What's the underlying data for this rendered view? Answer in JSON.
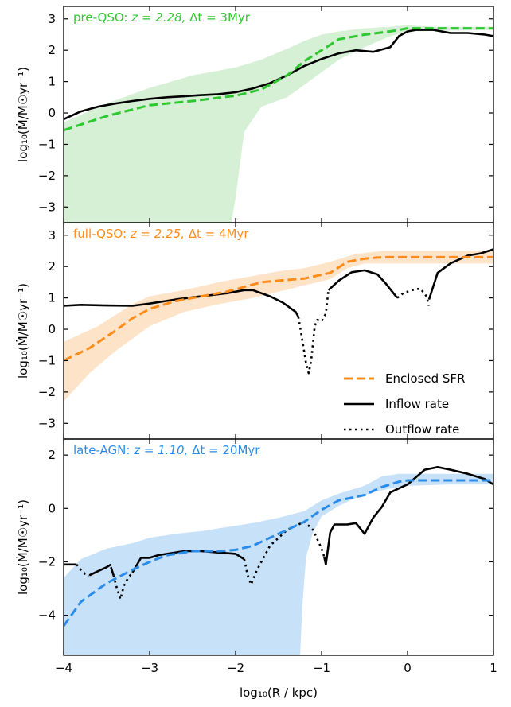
{
  "chart_data": {
    "type": "line",
    "xlabel": "log₁₀(R / kpc)",
    "xlim": [
      -4,
      1
    ],
    "xticks": [
      "−4",
      "−3",
      "−2",
      "−1",
      "0",
      "1"
    ],
    "legend": {
      "placement": "lower-right of middle panel",
      "entries": [
        {
          "label": "Enclosed SFR",
          "style": "dashed",
          "color": "#ff8c1a"
        },
        {
          "label": "Inflow rate",
          "style": "solid",
          "color": "#000000"
        },
        {
          "label": "Outflow rate",
          "style": "dotted",
          "color": "#000000"
        }
      ]
    },
    "panels": [
      {
        "title_prefix": "pre-QSO:",
        "title_z": "z = 2.28,",
        "title_dt": "Δt = 3Myr",
        "color": "#2fc72f",
        "fill_color": "#d5f0d5",
        "ylabel": "log₁₀(Ṁ/M☉yr⁻¹)",
        "ylim": [
          -3.5,
          3.4
        ],
        "yticks": [
          "3",
          "2",
          "1",
          "0",
          "−1",
          "−2",
          "−3"
        ],
        "sfr": {
          "x": [
            -4,
            -3.5,
            -3,
            -2.5,
            -2,
            -1.7,
            -1.4,
            -1.2,
            -1,
            -0.8,
            -0.5,
            -0.2,
            0,
            0.3,
            1
          ],
          "y": [
            -0.55,
            -0.1,
            0.25,
            0.38,
            0.55,
            0.75,
            1.2,
            1.65,
            2.0,
            2.35,
            2.5,
            2.6,
            2.7,
            2.7,
            2.7
          ]
        },
        "band_upper": {
          "x": [
            -4,
            -3.5,
            -3,
            -2.5,
            -2,
            -1.7,
            -1.4,
            -1.2,
            -1,
            -0.8,
            -0.5,
            -0.2,
            0,
            0.3,
            1
          ],
          "y": [
            -0.3,
            0.3,
            0.8,
            1.2,
            1.45,
            1.7,
            2.05,
            2.3,
            2.5,
            2.6,
            2.7,
            2.75,
            2.8,
            2.75,
            2.75
          ]
        },
        "band_lower": {
          "x": [
            -4,
            -3.5,
            -3,
            -2.5,
            -2.2,
            -2.1,
            -2.05,
            -2.0,
            -1.9,
            -1.7,
            -1.4,
            -1.2,
            -1,
            -0.8,
            -0.5,
            -0.2,
            0,
            1
          ],
          "y": [
            -3.5,
            -3.5,
            -3.5,
            -3.5,
            -3.5,
            -3.5,
            -3.5,
            -2.7,
            -0.6,
            0.2,
            0.5,
            0.9,
            1.3,
            1.7,
            2.1,
            2.45,
            2.6,
            2.65
          ]
        },
        "inflow": {
          "x": [
            -4,
            -3.8,
            -3.6,
            -3.4,
            -3.2,
            -3,
            -2.8,
            -2.6,
            -2.4,
            -2.2,
            -2,
            -1.8,
            -1.6,
            -1.4,
            -1.2,
            -1,
            -0.8,
            -0.6,
            -0.4,
            -0.2,
            -0.1,
            0,
            0.1,
            0.3,
            0.5,
            0.7,
            0.9,
            1
          ],
          "y": [
            -0.2,
            0.05,
            0.2,
            0.3,
            0.38,
            0.45,
            0.5,
            0.53,
            0.57,
            0.6,
            0.66,
            0.78,
            0.95,
            1.2,
            1.5,
            1.72,
            1.9,
            2.0,
            1.95,
            2.1,
            2.45,
            2.6,
            2.65,
            2.65,
            2.55,
            2.55,
            2.5,
            2.45
          ]
        },
        "outflow": null
      },
      {
        "title_prefix": "full-QSO:",
        "title_z": "z = 2.25,",
        "title_dt": "Δt = 4Myr",
        "color": "#ff8c1a",
        "fill_color": "#fde3c8",
        "ylabel": "log₁₀(Ṁ/M☉yr⁻¹)",
        "ylim": [
          -3.5,
          3.4
        ],
        "yticks": [
          "3",
          "2",
          "1",
          "0",
          "−1",
          "−2",
          "−3"
        ],
        "sfr": {
          "x": [
            -4,
            -3.7,
            -3.4,
            -3.2,
            -3,
            -2.7,
            -2.4,
            -2.1,
            -1.9,
            -1.7,
            -1.5,
            -1.2,
            -0.9,
            -0.7,
            -0.5,
            -0.3,
            0,
            0.3,
            0.6,
            1
          ],
          "y": [
            -1.0,
            -0.6,
            -0.05,
            0.35,
            0.65,
            0.9,
            1.05,
            1.2,
            1.35,
            1.5,
            1.55,
            1.62,
            1.8,
            2.15,
            2.25,
            2.3,
            2.3,
            2.3,
            2.3,
            2.3
          ]
        },
        "band_upper": {
          "x": [
            -4,
            -3.6,
            -3.2,
            -3,
            -2.6,
            -2.2,
            -1.8,
            -1.5,
            -1.2,
            -0.9,
            -0.6,
            -0.3,
            0,
            0.5,
            1
          ],
          "y": [
            -0.4,
            0.1,
            0.8,
            1.05,
            1.25,
            1.5,
            1.7,
            1.85,
            1.95,
            2.15,
            2.4,
            2.5,
            2.5,
            2.5,
            2.5
          ]
        },
        "band_lower": {
          "x": [
            -4,
            -3.7,
            -3.4,
            -3.2,
            -3,
            -2.6,
            -2.2,
            -1.8,
            -1.5,
            -1.2,
            -0.9,
            -0.7,
            -0.5,
            -0.2,
            0,
            0.5,
            1
          ],
          "y": [
            -2.3,
            -1.4,
            -0.7,
            -0.3,
            0.1,
            0.55,
            0.8,
            1.0,
            1.2,
            1.4,
            1.6,
            1.95,
            2.1,
            2.1,
            2.1,
            2.1,
            2.1
          ]
        },
        "inflow": {
          "x": [
            -4,
            -3.8,
            -3.5,
            -3.2,
            -3,
            -2.7,
            -2.4,
            -2.1,
            -1.9,
            -1.8,
            -1.6,
            -1.45,
            -1.3,
            -1.27
          ],
          "y": [
            0.75,
            0.78,
            0.76,
            0.75,
            0.82,
            0.95,
            1.05,
            1.15,
            1.25,
            1.25,
            1.05,
            0.85,
            0.55,
            0.4
          ]
        },
        "inflow2": {
          "x": [
            -0.92,
            -0.8,
            -0.65,
            -0.5,
            -0.35,
            -0.25,
            -0.12
          ],
          "y": [
            1.25,
            1.55,
            1.82,
            1.88,
            1.75,
            1.45,
            1.0
          ]
        },
        "inflow3": {
          "x": [
            0.25,
            0.35,
            0.5,
            0.7,
            0.85,
            1.0
          ],
          "y": [
            0.95,
            1.8,
            2.1,
            2.35,
            2.42,
            2.55
          ]
        },
        "outflow": {
          "x": [
            -1.27,
            -1.22,
            -1.18,
            -1.15,
            -1.12,
            -1.08,
            -1.05,
            -1.0,
            -0.95,
            -0.92
          ],
          "y": [
            0.4,
            -0.4,
            -1.1,
            -1.4,
            -1.0,
            0.1,
            0.3,
            0.25,
            0.5,
            1.25
          ]
        },
        "outflow2": {
          "x": [
            -0.12,
            -0.05,
            0.05,
            0.15,
            0.22,
            0.25
          ],
          "y": [
            1.0,
            1.15,
            1.25,
            1.3,
            1.05,
            0.75
          ]
        }
      },
      {
        "title_prefix": "late-AGN:",
        "title_z": "z = 1.10,",
        "title_dt": "Δt = 20Myr",
        "color": "#2a8be8",
        "fill_color": "#c7e1f9",
        "ylabel": "log₁₀(Ṁ/M☉yr⁻¹)",
        "ylim": [
          -5.5,
          2.6
        ],
        "yticks": [
          "2",
          "0",
          "−2",
          "−4"
        ],
        "sfr": {
          "x": [
            -4,
            -3.8,
            -3.5,
            -3.2,
            -3,
            -2.8,
            -2.5,
            -2.2,
            -2.0,
            -1.8,
            -1.6,
            -1.4,
            -1.2,
            -1.0,
            -0.8,
            -0.5,
            -0.3,
            -0.1,
            0,
            0.3,
            0.6,
            1
          ],
          "y": [
            -4.4,
            -3.5,
            -2.8,
            -2.3,
            -2.0,
            -1.75,
            -1.6,
            -1.6,
            -1.55,
            -1.4,
            -1.1,
            -0.8,
            -0.5,
            -0.05,
            0.3,
            0.5,
            0.8,
            1.0,
            1.05,
            1.05,
            1.05,
            1.05
          ]
        },
        "band_upper": {
          "x": [
            -4,
            -3.8,
            -3.5,
            -3.2,
            -3,
            -2.7,
            -2.4,
            -2.1,
            -1.8,
            -1.5,
            -1.2,
            -1.0,
            -0.8,
            -0.5,
            -0.3,
            -0.1,
            0,
            0.5,
            1
          ],
          "y": [
            -2.6,
            -1.9,
            -1.5,
            -1.3,
            -1.1,
            -0.95,
            -0.85,
            -0.7,
            -0.55,
            -0.35,
            -0.1,
            0.3,
            0.55,
            0.85,
            1.2,
            1.3,
            1.3,
            1.3,
            1.3
          ]
        },
        "band_lower": {
          "x": [
            -4,
            -3.5,
            -3,
            -2.5,
            -2,
            -1.5,
            -1.25,
            -1.22,
            -1.18,
            -1.1,
            -1.0,
            -0.8,
            -0.6,
            -0.4,
            -0.2,
            0,
            0.5,
            1
          ],
          "y": [
            -5.5,
            -5.5,
            -5.5,
            -5.5,
            -5.5,
            -5.5,
            -5.5,
            -3.5,
            -1.8,
            -0.9,
            -0.3,
            0.1,
            0.4,
            0.6,
            0.75,
            0.85,
            0.9,
            0.9
          ]
        },
        "inflow": {
          "x": [
            -3.45,
            -3.42
          ],
          "y": [
            -2.2,
            -2.5
          ]
        },
        "inflow2": {
          "x": [
            -3.2,
            -3.1,
            -3.0,
            -2.9,
            -2.8,
            -2.6,
            -2.4,
            -2.2,
            -2.0,
            -1.9
          ],
          "y": [
            -2.4,
            -1.85,
            -1.85,
            -1.75,
            -1.7,
            -1.6,
            -1.6,
            -1.65,
            -1.7,
            -1.9
          ]
        },
        "inflow3": {
          "x": [
            -0.97,
            -0.95,
            -0.9,
            -0.85,
            -0.8,
            -0.7,
            -0.6,
            -0.5,
            -0.4,
            -0.3,
            -0.2,
            -0.1,
            0,
            0.2,
            0.35,
            0.5,
            0.7,
            0.9,
            1.0
          ],
          "y": [
            -1.8,
            -2.1,
            -0.9,
            -0.6,
            -0.6,
            -0.6,
            -0.55,
            -0.95,
            -0.35,
            0.05,
            0.6,
            0.75,
            0.9,
            1.45,
            1.55,
            1.45,
            1.3,
            1.1,
            0.9
          ]
        },
        "inflow4": {
          "x": [
            -4,
            -3.9,
            -3.85
          ],
          "y": [
            -2.1,
            -2.1,
            -2.1
          ]
        },
        "inflow5": {
          "x": [
            -3.7,
            -3.6,
            -3.5,
            -3.45
          ],
          "y": [
            -2.5,
            -2.35,
            -2.2,
            -2.1
          ]
        },
        "outflow": {
          "x": [
            -3.85,
            -3.8,
            -3.75,
            -3.7
          ],
          "y": [
            -2.1,
            -2.3,
            -2.45,
            -2.5
          ]
        },
        "outflow2": {
          "x": [
            -3.42,
            -3.38,
            -3.34,
            -3.3,
            -3.25,
            -3.2
          ],
          "y": [
            -2.5,
            -3.0,
            -3.4,
            -2.9,
            -2.6,
            -2.4
          ]
        },
        "outflow3": {
          "x": [
            -1.9,
            -1.86,
            -1.82,
            -1.75,
            -1.6,
            -1.4,
            -1.2,
            -1.1,
            -1.0,
            -0.97
          ],
          "y": [
            -1.9,
            -2.5,
            -2.85,
            -2.3,
            -1.4,
            -0.8,
            -0.5,
            -0.8,
            -1.5,
            -1.8
          ]
        }
      }
    ]
  }
}
